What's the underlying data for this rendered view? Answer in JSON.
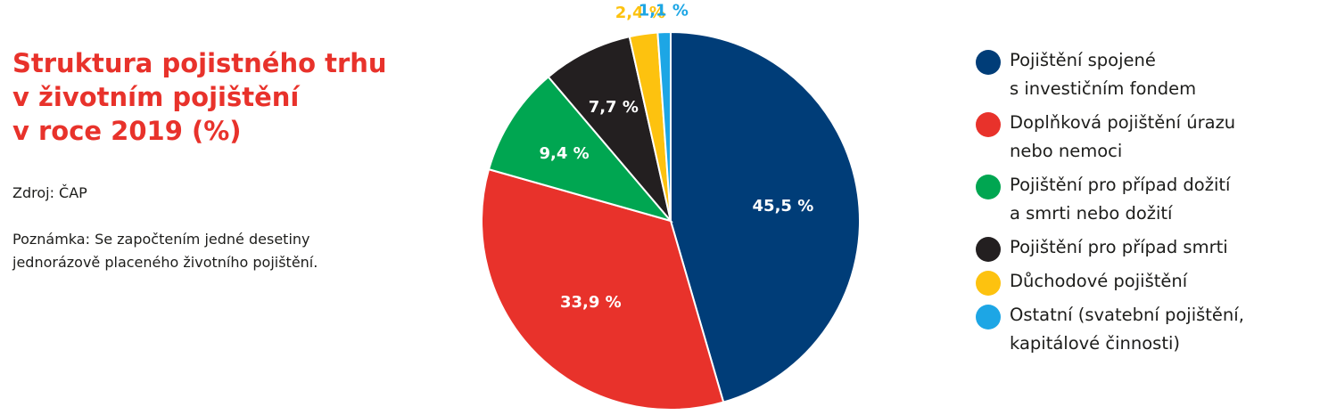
{
  "title_lines": [
    "Struktura pojistného trhu",
    "v životním pojištění",
    "v roce 2019 (%)"
  ],
  "source": "Zdroj: ČAP",
  "note_lines": [
    "Poznámka: Se započtením jedné desetiny",
    "jednorázově placeného životního pojištění."
  ],
  "chart_data": {
    "type": "pie",
    "unit": "%",
    "slices": [
      {
        "label_lines": [
          "Pojištění spojené",
          "s investičním fondem"
        ],
        "value": 45.5,
        "value_label": "45,5 %",
        "color": "#003d78"
      },
      {
        "label_lines": [
          "Doplňková pojištění úrazu",
          "nebo nemoci"
        ],
        "value": 33.9,
        "value_label": "33,9 %",
        "color": "#e8322b"
      },
      {
        "label_lines": [
          "Pojištění pro případ dožití",
          "a smrti nebo dožití"
        ],
        "value": 9.4,
        "value_label": "9,4 %",
        "color": "#00a651"
      },
      {
        "label_lines": [
          "Pojištění pro případ smrti"
        ],
        "value": 7.7,
        "value_label": "7,7 %",
        "color": "#231f20"
      },
      {
        "label_lines": [
          "Důchodové pojištění"
        ],
        "value": 2.4,
        "value_label": "2,4 %",
        "color": "#fdc20f"
      },
      {
        "label_lines": [
          "Ostatní (svatební pojištění,",
          "kapitálové činnosti)"
        ],
        "value": 1.1,
        "value_label": "1,1 %",
        "color": "#1da6e5"
      }
    ],
    "start": "12 o'clock, clockwise",
    "legend_position": "right"
  }
}
